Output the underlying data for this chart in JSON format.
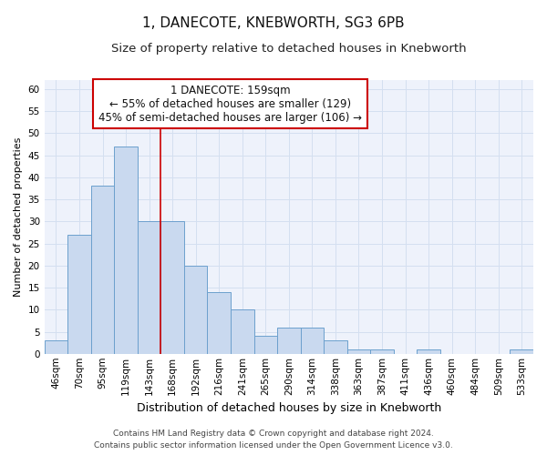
{
  "title": "1, DANECOTE, KNEBWORTH, SG3 6PB",
  "subtitle": "Size of property relative to detached houses in Knebworth",
  "xlabel": "Distribution of detached houses by size in Knebworth",
  "ylabel": "Number of detached properties",
  "categories": [
    "46sqm",
    "70sqm",
    "95sqm",
    "119sqm",
    "143sqm",
    "168sqm",
    "192sqm",
    "216sqm",
    "241sqm",
    "265sqm",
    "290sqm",
    "314sqm",
    "338sqm",
    "363sqm",
    "387sqm",
    "411sqm",
    "436sqm",
    "460sqm",
    "484sqm",
    "509sqm",
    "533sqm"
  ],
  "values": [
    3,
    27,
    38,
    47,
    30,
    30,
    20,
    14,
    10,
    4,
    6,
    6,
    3,
    1,
    1,
    0,
    1,
    0,
    0,
    0,
    1
  ],
  "bar_color": "#c9d9ef",
  "bar_edge_color": "#6ca0cd",
  "ylim": [
    0,
    62
  ],
  "yticks": [
    0,
    5,
    10,
    15,
    20,
    25,
    30,
    35,
    40,
    45,
    50,
    55,
    60
  ],
  "property_name": "1 DANECOTE: 159sqm",
  "annotation_line1": "← 55% of detached houses are smaller (129)",
  "annotation_line2": "45% of semi-detached houses are larger (106) →",
  "vline_color": "#cc0000",
  "annotation_box_edge": "#cc0000",
  "grid_color": "#d4dff0",
  "background_color": "#eef2fb",
  "footer_line1": "Contains HM Land Registry data © Crown copyright and database right 2024.",
  "footer_line2": "Contains public sector information licensed under the Open Government Licence v3.0.",
  "title_fontsize": 11,
  "subtitle_fontsize": 9.5,
  "xlabel_fontsize": 9,
  "ylabel_fontsize": 8,
  "tick_fontsize": 7.5,
  "annotation_fontsize": 8.5,
  "footer_fontsize": 6.5,
  "vline_x_index": 5
}
